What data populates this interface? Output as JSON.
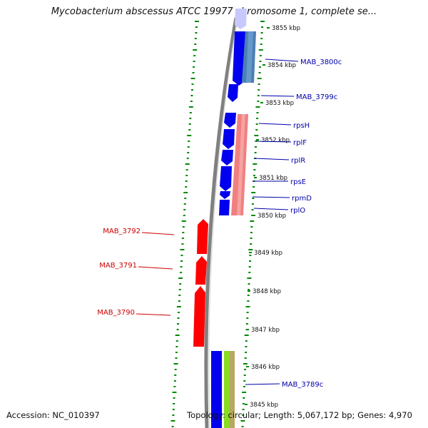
{
  "title": "Mycobacterium abscessus ATCC 19977 chromosome 1, complete se...",
  "footer": {
    "accession": "Accession: NC_010397",
    "topology": "Topology: circular; Length: 5,067,172 bp; Genes: 4,970"
  },
  "scale_labels": [
    "3855 kbp",
    "3854 kbp",
    "3853 kbp",
    "3852 kbp",
    "3851 kbp",
    "3850 kbp",
    "3849 kbp",
    "3848 kbp",
    "3847 kbp",
    "3846 kbp",
    "3845 kbp"
  ],
  "gene_labels_right": [
    "MAB_3800c",
    "MAB_3799c",
    "rpsH",
    "rplF",
    "rplR",
    "rpsE",
    "rpmD",
    "rplO",
    "MAB_3789c"
  ],
  "gene_labels_left": [
    "MAB_3792",
    "MAB_3791",
    "MAB_3790"
  ],
  "colors": {
    "forward_gene": "#ff0000",
    "reverse_gene": "#0000ee",
    "backbone": "#808080",
    "tick": "#008800",
    "reverse_label": "#0000aa",
    "forward_label": "#cc0000",
    "cog_blue": "#4a80b4",
    "cog_pink": "#f08080",
    "cog_green": "#88dd22",
    "cog_olive": "#b8a860"
  }
}
